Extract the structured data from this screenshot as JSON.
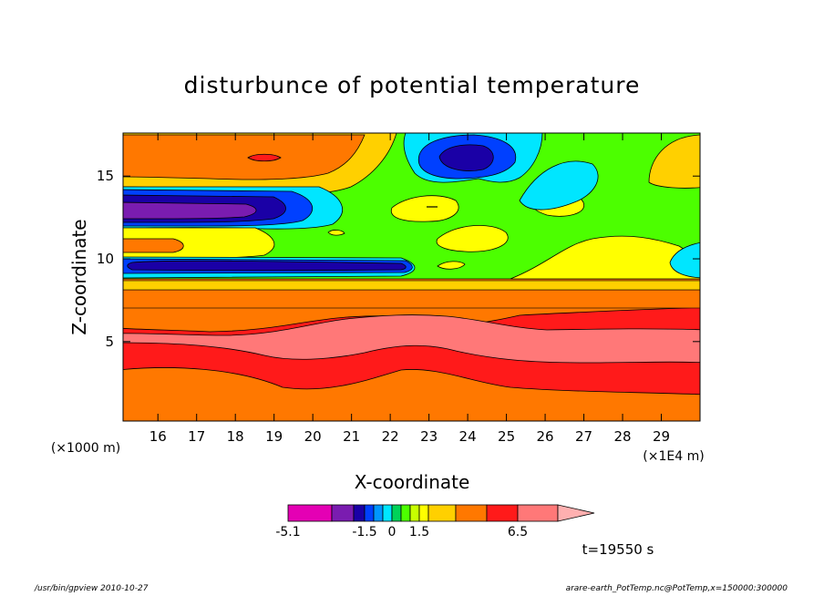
{
  "chart_data": {
    "type": "heatmap",
    "title": "disturbunce of potential temperature",
    "xlabel": "X-coordinate",
    "ylabel": "Z-coordinate",
    "x_unit": "(×1E4 m)",
    "y_unit": "(×1000 m)",
    "x_ticks": [
      16,
      17,
      18,
      19,
      20,
      21,
      22,
      23,
      24,
      25,
      26,
      27,
      28,
      29
    ],
    "y_ticks": [
      5,
      10,
      15
    ],
    "xlim": [
      15.1,
      30
    ],
    "ylim": [
      0.2,
      17.6
    ],
    "colorbar": {
      "levels": [
        -5.1,
        -3.1,
        -2.1,
        -1.5,
        -1.0,
        -0.5,
        0,
        0.5,
        1.0,
        1.5,
        2.5,
        3.7,
        5.0,
        6.5
      ],
      "tick_labels": [
        "-5.1",
        "-1.5",
        "0",
        "1.5",
        "6.5"
      ],
      "tick_values": [
        -5.1,
        -1.5,
        0,
        1.5,
        6.5
      ],
      "colors": [
        "#e400b4",
        "#7a1cb0",
        "#1a00a6",
        "#0040ff",
        "#0096ff",
        "#00e6ff",
        "#00d25a",
        "#4cff00",
        "#c8ff00",
        "#ffff00",
        "#ffd000",
        "#ff7800",
        "#ff1a1a",
        "#ff7878",
        "#ffb0b0"
      ]
    },
    "annotation": "t=19550 s"
  },
  "footer": {
    "left": "/usr/bin/gpview   2010-10-27",
    "right": "arare-earth_PotTemp.nc@PotTemp,x=150000:300000"
  }
}
